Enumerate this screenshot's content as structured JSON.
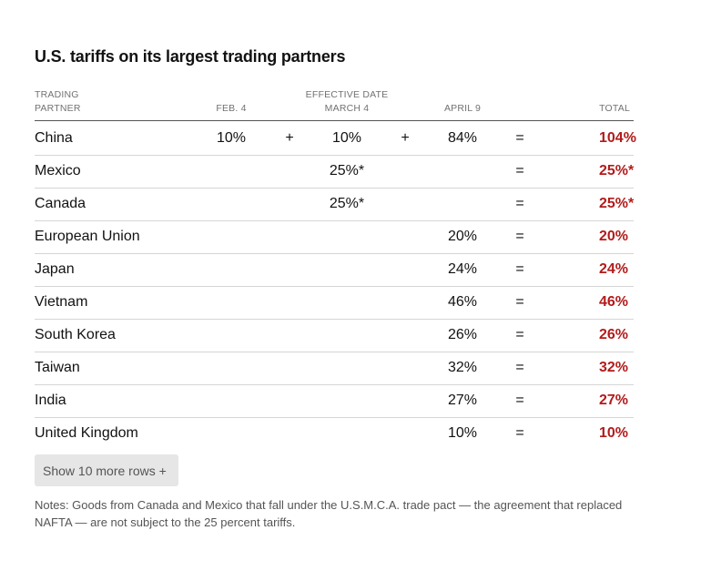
{
  "title": "U.S. tariffs on its largest trading partners",
  "headers": {
    "trading_partner_line1": "TRADING",
    "trading_partner_line2": "PARTNER",
    "effective_date": "EFFECTIVE DATE",
    "feb4": "FEB. 4",
    "march4": "MARCH 4",
    "april9": "APRIL 9",
    "total": "TOTAL"
  },
  "chart_data": {
    "type": "table",
    "columns": [
      "Trading partner",
      "Feb. 4",
      "March 4",
      "April 9",
      "Total"
    ],
    "rows": [
      {
        "partner": "China",
        "feb4": "10%",
        "op1": "+",
        "march4": "10%",
        "op2": "+",
        "april9": "84%",
        "eq": "=",
        "total": "104%"
      },
      {
        "partner": "Mexico",
        "feb4": "",
        "op1": "",
        "march4": "25%*",
        "op2": "",
        "april9": "",
        "eq": "=",
        "total": "25%*"
      },
      {
        "partner": "Canada",
        "feb4": "",
        "op1": "",
        "march4": "25%*",
        "op2": "",
        "april9": "",
        "eq": "=",
        "total": "25%*"
      },
      {
        "partner": "European Union",
        "feb4": "",
        "op1": "",
        "march4": "",
        "op2": "",
        "april9": "20%",
        "eq": "=",
        "total": "20%"
      },
      {
        "partner": "Japan",
        "feb4": "",
        "op1": "",
        "march4": "",
        "op2": "",
        "april9": "24%",
        "eq": "=",
        "total": "24%"
      },
      {
        "partner": "Vietnam",
        "feb4": "",
        "op1": "",
        "march4": "",
        "op2": "",
        "april9": "46%",
        "eq": "=",
        "total": "46%"
      },
      {
        "partner": "South Korea",
        "feb4": "",
        "op1": "",
        "march4": "",
        "op2": "",
        "april9": "26%",
        "eq": "=",
        "total": "26%"
      },
      {
        "partner": "Taiwan",
        "feb4": "",
        "op1": "",
        "march4": "",
        "op2": "",
        "april9": "32%",
        "eq": "=",
        "total": "32%"
      },
      {
        "partner": "India",
        "feb4": "",
        "op1": "",
        "march4": "",
        "op2": "",
        "april9": "27%",
        "eq": "=",
        "total": "27%"
      },
      {
        "partner": "United Kingdom",
        "feb4": "",
        "op1": "",
        "march4": "",
        "op2": "",
        "april9": "10%",
        "eq": "=",
        "total": "10%"
      }
    ]
  },
  "show_more_label": "Show 10 more rows +",
  "notes": "Notes: Goods from Canada and Mexico that fall under the U.S.M.C.A. trade pact — the agreement that replaced NAFTA — are not subject to the 25 percent tariffs.",
  "colors": {
    "total_text": "#b31b1b",
    "header_text": "#727272",
    "button_bg": "#e6e6e6"
  }
}
